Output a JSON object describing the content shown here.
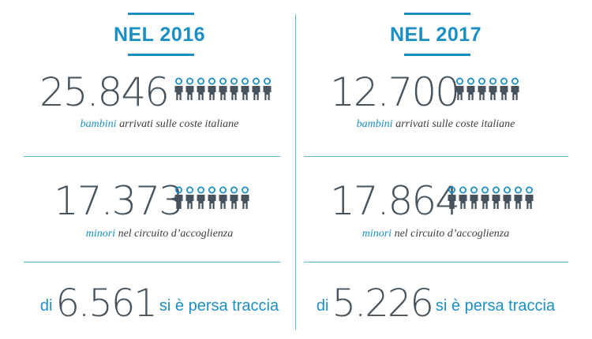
{
  "colors": {
    "accent": "#1b8fc4",
    "number": "#46535c",
    "divider": "#5bb8d9"
  },
  "columns": [
    {
      "year": "NEL 2016",
      "arrivals": {
        "number": "25.846",
        "icon_count": 9,
        "accent": "bambini",
        "rest": " arrivati sulle coste italiane"
      },
      "minors": {
        "number": "17.373",
        "icon_count": 7,
        "accent": "minori",
        "rest": " nel circuito d’accoglienza"
      },
      "lost": {
        "prefix": "di",
        "number": "6.561",
        "suffix": "si è persa traccia"
      }
    },
    {
      "year": "NEL 2017",
      "arrivals": {
        "number": "12.700",
        "icon_count": 6,
        "accent": "bambini",
        "rest": " arrivati sulle coste italiane"
      },
      "minors": {
        "number": "17.864",
        "icon_count": 8,
        "accent": "minori",
        "rest": " nel circuito d’accoglienza"
      },
      "lost": {
        "prefix": "di",
        "number": "5.226",
        "suffix": "si è persa traccia"
      }
    }
  ]
}
